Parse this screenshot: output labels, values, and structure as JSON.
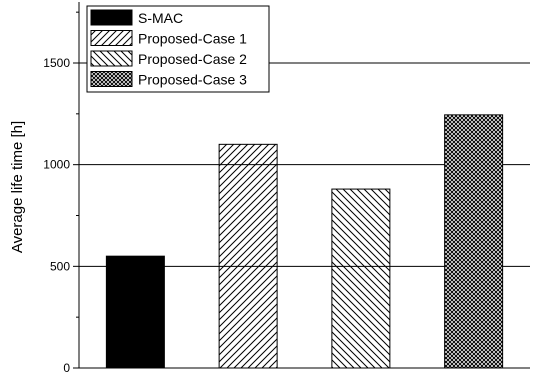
{
  "chart_data": {
    "type": "bar",
    "ylabel": "Average life time [h]",
    "xlabel": "",
    "ylim": [
      0,
      1800
    ],
    "yticks": [
      0,
      500,
      1000,
      1500
    ],
    "grid": "horizontal",
    "legend_position": "top-left",
    "series": [
      {
        "name": "S-MAC",
        "value": 550,
        "fill": "solid",
        "color": "#000000"
      },
      {
        "name": "Proposed-Case 1",
        "value": 1100,
        "fill": "diagonal-forward",
        "color": "#000000"
      },
      {
        "name": "Proposed-Case 2",
        "value": 880,
        "fill": "diagonal-backward",
        "color": "#000000"
      },
      {
        "name": "Proposed-Case 3",
        "value": 1245,
        "fill": "crosshatch",
        "color": "#000000"
      }
    ]
  }
}
